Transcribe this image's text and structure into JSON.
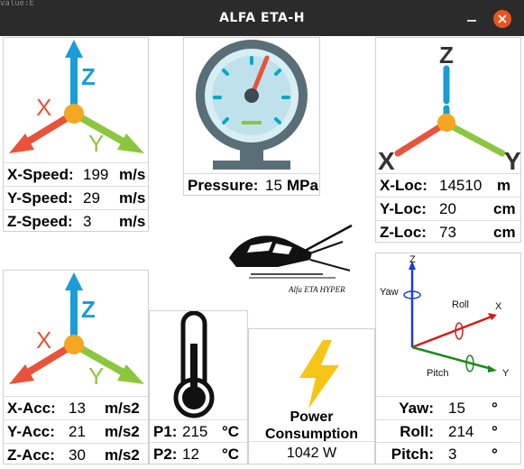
{
  "window": {
    "title": "ALFA ETA-H",
    "corner_text": "value:E"
  },
  "colors": {
    "arrow_x": "#e8533b",
    "arrow_y": "#8cc63f",
    "arrow_z": "#1a9cd8",
    "center_dot": "#f5a623",
    "close_button": "#e95420",
    "bolt": "#f5c518"
  },
  "speed": {
    "axis_labels": {
      "x": "X",
      "y": "Y",
      "z": "Z"
    },
    "rows": [
      {
        "label": "X-Speed:",
        "value": "199",
        "unit": "m/s"
      },
      {
        "label": "Y-Speed:",
        "value": "29",
        "unit": "m/s"
      },
      {
        "label": "Z-Speed:",
        "value": "3",
        "unit": "m/s"
      }
    ]
  },
  "pressure": {
    "label": "Pressure:",
    "value": "15",
    "unit": "MPa"
  },
  "location": {
    "axis_labels": {
      "x": "X",
      "y": "Y",
      "z": "Z"
    },
    "rows": [
      {
        "label": "X-Loc:",
        "value": "14510",
        "unit": "m"
      },
      {
        "label": "Y-Loc:",
        "value": "20",
        "unit": "cm"
      },
      {
        "label": "Z-Loc:",
        "value": "73",
        "unit": "cm"
      }
    ]
  },
  "logo": {
    "text": "Alfa ETA HYPER"
  },
  "acceleration": {
    "axis_labels": {
      "x": "X",
      "y": "Y",
      "z": "Z"
    },
    "rows": [
      {
        "label": "X-Acc:",
        "value": "13",
        "unit": "m/s2"
      },
      {
        "label": "Y-Acc:",
        "value": "21",
        "unit": "m/s2"
      },
      {
        "label": "Z-Acc:",
        "value": "30",
        "unit": "m/s2"
      }
    ]
  },
  "temperature": {
    "rows": [
      {
        "label": "P1:",
        "value": "215",
        "unit": "°C"
      },
      {
        "label": "P2:",
        "value": "12",
        "unit": "°C"
      }
    ]
  },
  "power": {
    "title_line1": "Power",
    "title_line2": "Consumption",
    "value": "1042 W"
  },
  "orientation": {
    "diagram_labels": {
      "z": "Z",
      "x": "X",
      "y": "Y",
      "yaw": "Yaw",
      "roll": "Roll",
      "pitch": "Pitch"
    },
    "rows": [
      {
        "label": "Yaw:",
        "value": "15",
        "unit": "°"
      },
      {
        "label": "Roll:",
        "value": "214",
        "unit": "°"
      },
      {
        "label": "Pitch:",
        "value": "3",
        "unit": "°"
      }
    ]
  }
}
